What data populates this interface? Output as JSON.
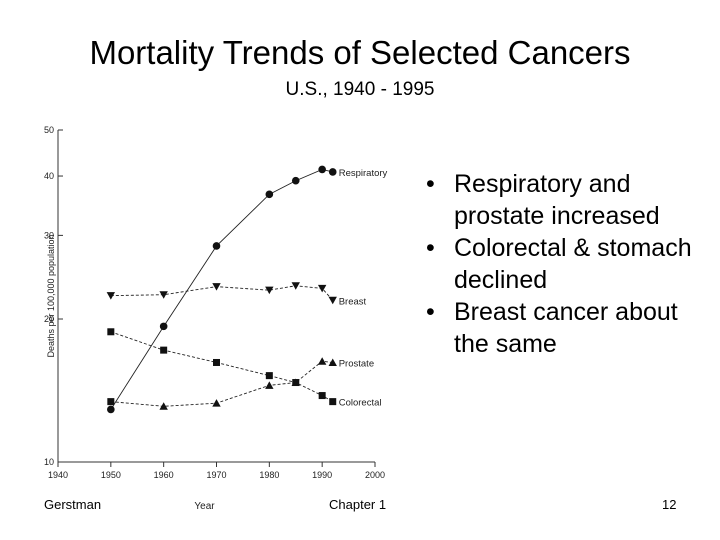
{
  "slide": {
    "title": "Mortality Trends of Selected Cancers",
    "subtitle": "U.S., 1940 - 1995",
    "bullets": [
      "Respiratory and prostate increased",
      "Colorectal & stomach declined",
      "Breast cancer about the same"
    ],
    "footer": {
      "left": "Gerstman",
      "center": "Chapter 1",
      "right": "12"
    }
  },
  "chart_data": {
    "type": "line",
    "xlabel": "Year",
    "ylabel": "Deaths per 100,000 population",
    "xlim": [
      1940,
      2000
    ],
    "ylim": [
      10,
      50
    ],
    "y_scale": "log",
    "x_ticks": [
      1940,
      1950,
      1960,
      1970,
      1980,
      1990,
      2000
    ],
    "y_ticks": [
      10,
      20,
      30,
      40,
      50
    ],
    "grid": false,
    "series": [
      {
        "name": "Respiratory",
        "marker": "circle",
        "x": [
          1950,
          1960,
          1970,
          1980,
          1985,
          1990,
          1992
        ],
        "y": [
          12.9,
          19.3,
          28.5,
          36.6,
          39.1,
          41.3,
          40.8
        ]
      },
      {
        "name": "Breast",
        "marker": "triangle-down",
        "x": [
          1950,
          1960,
          1970,
          1980,
          1985,
          1990,
          1992
        ],
        "y": [
          22.4,
          22.5,
          23.4,
          23.0,
          23.5,
          23.2,
          21.9
        ]
      },
      {
        "name": "Prostate",
        "marker": "square-then-triangle-up",
        "x": [
          1950,
          1960,
          1970,
          1980,
          1985,
          1990,
          1992
        ],
        "y": [
          13.4,
          13.1,
          13.3,
          14.5,
          14.7,
          16.3,
          16.2
        ]
      },
      {
        "name": "Colorectal",
        "marker": "square",
        "x": [
          1950,
          1960,
          1970,
          1980,
          1985,
          1990,
          1992
        ],
        "y": [
          18.8,
          17.2,
          16.2,
          15.2,
          14.7,
          13.8,
          13.4
        ]
      }
    ]
  }
}
